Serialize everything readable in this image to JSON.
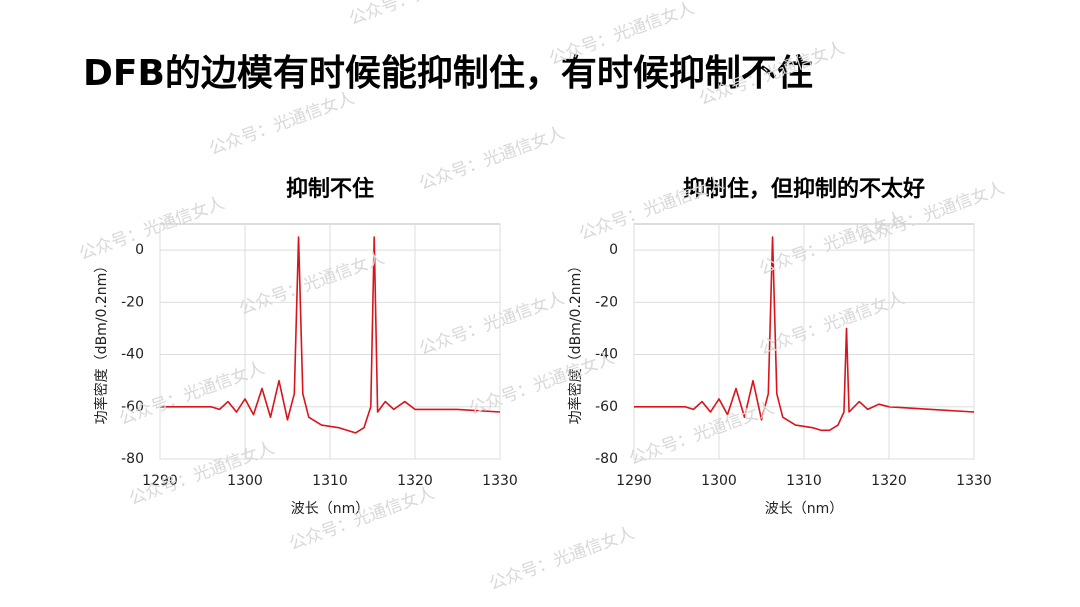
{
  "title": "DFB的边模有时候能抑制住，有时候抑制不住",
  "watermark": "公众号：光通信女人",
  "chart_data": [
    {
      "type": "line",
      "title": "抑制不住",
      "x_label": "波长（nm）",
      "y_label": "功率密度（dBm/0.2nm）",
      "color": "#d9141b",
      "x": [
        1290,
        1296,
        1297,
        1298,
        1299,
        1300,
        1301,
        1302,
        1303,
        1304,
        1305,
        1305.8,
        1306.3,
        1306.8,
        1307.5,
        1309,
        1311,
        1312,
        1313,
        1314,
        1314.8,
        1315.2,
        1315.6,
        1316.5,
        1317.5,
        1318.8,
        1320,
        1325,
        1330
      ],
      "values": [
        -60,
        -60,
        -61,
        -58,
        -62,
        -57,
        -63,
        -53,
        -64,
        -50,
        -65,
        -55,
        5,
        -55,
        -64,
        -67,
        -68,
        -69,
        -70,
        -68,
        -60,
        5,
        -62,
        -58,
        -61,
        -58,
        -61,
        -61,
        -62
      ],
      "xlim": [
        1290,
        1330
      ],
      "xticks": [
        1290,
        1300,
        1310,
        1320,
        1330
      ],
      "ylim": [
        -80,
        10
      ],
      "yticks": [
        -80,
        -60,
        -40,
        -20,
        0
      ],
      "grid": true
    },
    {
      "type": "line",
      "title": "抑制住，但抑制的不太好",
      "x_label": "波长（nm）",
      "y_label": "功率密度（dBm/0.2nm）",
      "color": "#d9141b",
      "x": [
        1290,
        1296,
        1297,
        1298,
        1299,
        1300,
        1301,
        1302,
        1303,
        1304,
        1305,
        1305.8,
        1306.3,
        1306.8,
        1307.5,
        1309,
        1311,
        1312,
        1313,
        1314,
        1314.7,
        1315,
        1315.3,
        1316.5,
        1317.5,
        1318.8,
        1320,
        1325,
        1330
      ],
      "values": [
        -60,
        -60,
        -61,
        -58,
        -62,
        -57,
        -63,
        -53,
        -64,
        -50,
        -65,
        -55,
        5,
        -55,
        -64,
        -67,
        -68,
        -69,
        -69,
        -67,
        -62,
        -30,
        -62,
        -58,
        -61,
        -59,
        -60,
        -61,
        -62
      ],
      "xlim": [
        1290,
        1330
      ],
      "xticks": [
        1290,
        1300,
        1310,
        1320,
        1330
      ],
      "ylim": [
        -80,
        10
      ],
      "yticks": [
        -80,
        -60,
        -40,
        -20,
        0
      ],
      "grid": true
    }
  ]
}
